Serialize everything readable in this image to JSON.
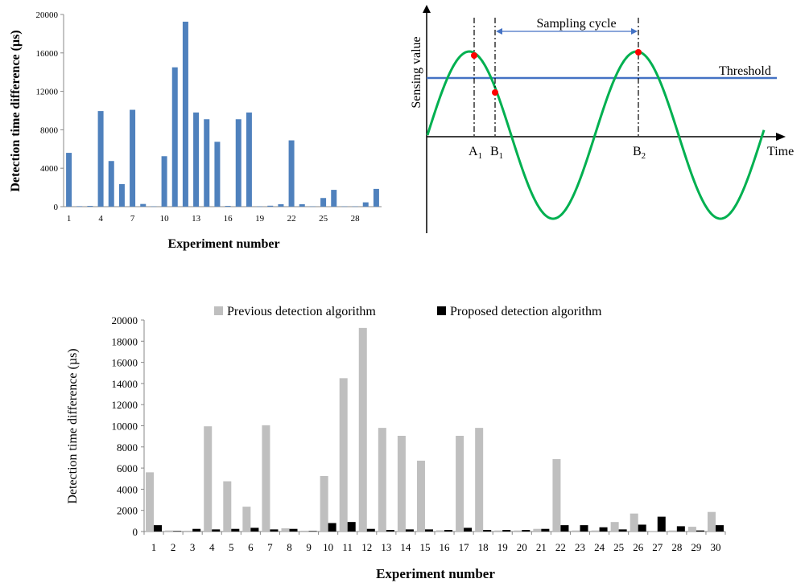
{
  "chart_data": [
    {
      "id": "top_bar",
      "type": "bar",
      "title": "",
      "xlabel": "Experiment number",
      "ylabel": "Detection time difference (µs)",
      "ylim": [
        0,
        20000
      ],
      "yticks": [
        0,
        4000,
        8000,
        12000,
        16000,
        20000
      ],
      "xtick_labels": [
        "1",
        "4",
        "7",
        "10",
        "13",
        "16",
        "19",
        "22",
        "25",
        "28"
      ],
      "xtick_positions": [
        1,
        4,
        7,
        10,
        13,
        16,
        19,
        22,
        25,
        28
      ],
      "categories": [
        1,
        2,
        3,
        4,
        5,
        6,
        7,
        8,
        9,
        10,
        11,
        12,
        13,
        14,
        15,
        16,
        17,
        18,
        19,
        20,
        21,
        22,
        23,
        24,
        25,
        26,
        27,
        28,
        29,
        30
      ],
      "values": [
        5600,
        50,
        80,
        9950,
        4750,
        2350,
        10080,
        280,
        30,
        5250,
        14500,
        19250,
        9800,
        9100,
        6750,
        80,
        9100,
        9800,
        30,
        100,
        250,
        6900,
        250,
        30,
        900,
        1750,
        30,
        30,
        450,
        1850
      ],
      "color": "#4F81BD"
    },
    {
      "id": "schematic",
      "type": "line",
      "xlabel": "Time",
      "ylabel": "Sensing value",
      "threshold_label": "Threshold",
      "cycle_label": "Sampling cycle",
      "points": [
        {
          "letter": "A",
          "sub": "1"
        },
        {
          "letter": "B",
          "sub": "1"
        },
        {
          "letter": "B",
          "sub": "2"
        }
      ],
      "curve_color": "#00B050",
      "threshold_color": "#4472C4",
      "point_color": "#FF0000"
    },
    {
      "id": "bottom_bar",
      "type": "bar",
      "xlabel": "Experiment number",
      "ylabel": "Detection time difference (µs)",
      "ylim": [
        0,
        20000
      ],
      "yticks": [
        0,
        2000,
        4000,
        6000,
        8000,
        10000,
        12000,
        14000,
        16000,
        18000,
        20000
      ],
      "categories": [
        "1",
        "2",
        "3",
        "4",
        "5",
        "6",
        "7",
        "8",
        "9",
        "10",
        "11",
        "12",
        "13",
        "14",
        "15",
        "16",
        "17",
        "18",
        "19",
        "20",
        "21",
        "22",
        "23",
        "24",
        "25",
        "26",
        "27",
        "28",
        "29",
        "30"
      ],
      "series": [
        {
          "name": "Previous detection algorithm",
          "color": "#BFBFBF",
          "values": [
            5600,
            100,
            80,
            9950,
            4750,
            2350,
            10050,
            300,
            80,
            5250,
            14500,
            19250,
            9800,
            9050,
            6700,
            120,
            9050,
            9800,
            100,
            100,
            250,
            6850,
            100,
            100,
            900,
            1700,
            50,
            100,
            450,
            1850
          ]
        },
        {
          "name": "Proposed detection algorithm",
          "color": "#000000",
          "values": [
            600,
            50,
            250,
            200,
            250,
            350,
            200,
            250,
            50,
            800,
            900,
            250,
            150,
            200,
            200,
            150,
            350,
            150,
            150,
            150,
            250,
            600,
            600,
            400,
            200,
            650,
            1400,
            500,
            100,
            600
          ]
        }
      ],
      "legend": "top"
    }
  ]
}
